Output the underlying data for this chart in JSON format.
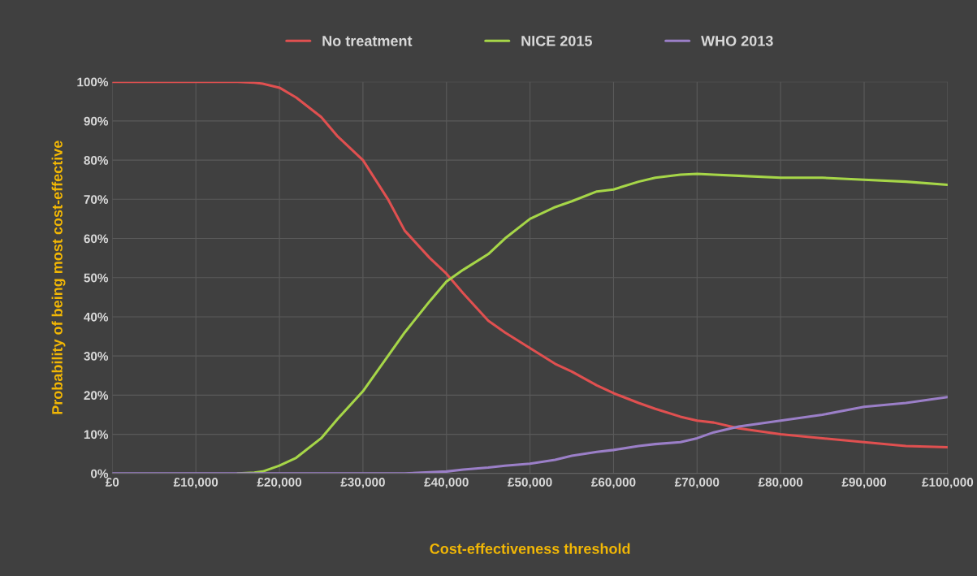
{
  "chart_data": {
    "type": "line",
    "xlabel": "Cost-effectiveness threshold",
    "ylabel": "Probability of being most cost-effective",
    "x": [
      0,
      10000,
      15000,
      17000,
      18000,
      20000,
      22000,
      25000,
      27000,
      30000,
      33000,
      35000,
      38000,
      40000,
      42000,
      45000,
      47000,
      50000,
      53000,
      55000,
      58000,
      60000,
      63000,
      65000,
      68000,
      70000,
      72000,
      75000,
      80000,
      85000,
      90000,
      95000,
      100000
    ],
    "series": [
      {
        "name": "No treatment",
        "color": "#e05050",
        "values": [
          100,
          100,
          100,
          99.8,
          99.5,
          98.5,
          96,
          91,
          86,
          80,
          70,
          62,
          55,
          51,
          46,
          39,
          36,
          32,
          28,
          26,
          22.5,
          20.5,
          18,
          16.5,
          14.5,
          13.5,
          13,
          11.5,
          10,
          9,
          8,
          7,
          6.7
        ]
      },
      {
        "name": "NICE 2015",
        "color": "#a6d648",
        "values": [
          null,
          null,
          0,
          0.2,
          0.5,
          2,
          4,
          9,
          14,
          21,
          30,
          36,
          44,
          49,
          52,
          56,
          60,
          65,
          68,
          69.5,
          72,
          72.5,
          74.5,
          75.5,
          76.3,
          76.5,
          76.3,
          76,
          75.5,
          75.5,
          75,
          74.5,
          73.7
        ]
      },
      {
        "name": "WHO 2013",
        "color": "#9b7fc8",
        "values": [
          0,
          0,
          0,
          0,
          0,
          0,
          0,
          0,
          0,
          0,
          0,
          0,
          0.3,
          0.5,
          1,
          1.5,
          2,
          2.5,
          3.5,
          4.5,
          5.5,
          6,
          7,
          7.5,
          8,
          9,
          10.5,
          12,
          13.5,
          15,
          17,
          18,
          19.5
        ]
      }
    ],
    "xlim": [
      0,
      100000
    ],
    "xticks": [
      {
        "value": 0,
        "label": "£0"
      },
      {
        "value": 10000,
        "label": "£10,000"
      },
      {
        "value": 20000,
        "label": "£20,000"
      },
      {
        "value": 30000,
        "label": "£30,000"
      },
      {
        "value": 40000,
        "label": "£40,000"
      },
      {
        "value": 50000,
        "label": "£50,000"
      },
      {
        "value": 60000,
        "label": "£60,000"
      },
      {
        "value": 70000,
        "label": "£70,000"
      },
      {
        "value": 80000,
        "label": "£80,000"
      },
      {
        "value": 90000,
        "label": "£90,000"
      },
      {
        "value": 100000,
        "label": "£100,000"
      }
    ],
    "ylim": [
      0,
      100
    ],
    "yticks": [
      {
        "value": 0,
        "label": "0%"
      },
      {
        "value": 10,
        "label": "10%"
      },
      {
        "value": 20,
        "label": "20%"
      },
      {
        "value": 30,
        "label": "30%"
      },
      {
        "value": 40,
        "label": "40%"
      },
      {
        "value": 50,
        "label": "50%"
      },
      {
        "value": 60,
        "label": "60%"
      },
      {
        "value": 70,
        "label": "70%"
      },
      {
        "value": 80,
        "label": "80%"
      },
      {
        "value": 90,
        "label": "90%"
      },
      {
        "value": 100,
        "label": "100%"
      }
    ],
    "grid": true,
    "legend": "top"
  }
}
